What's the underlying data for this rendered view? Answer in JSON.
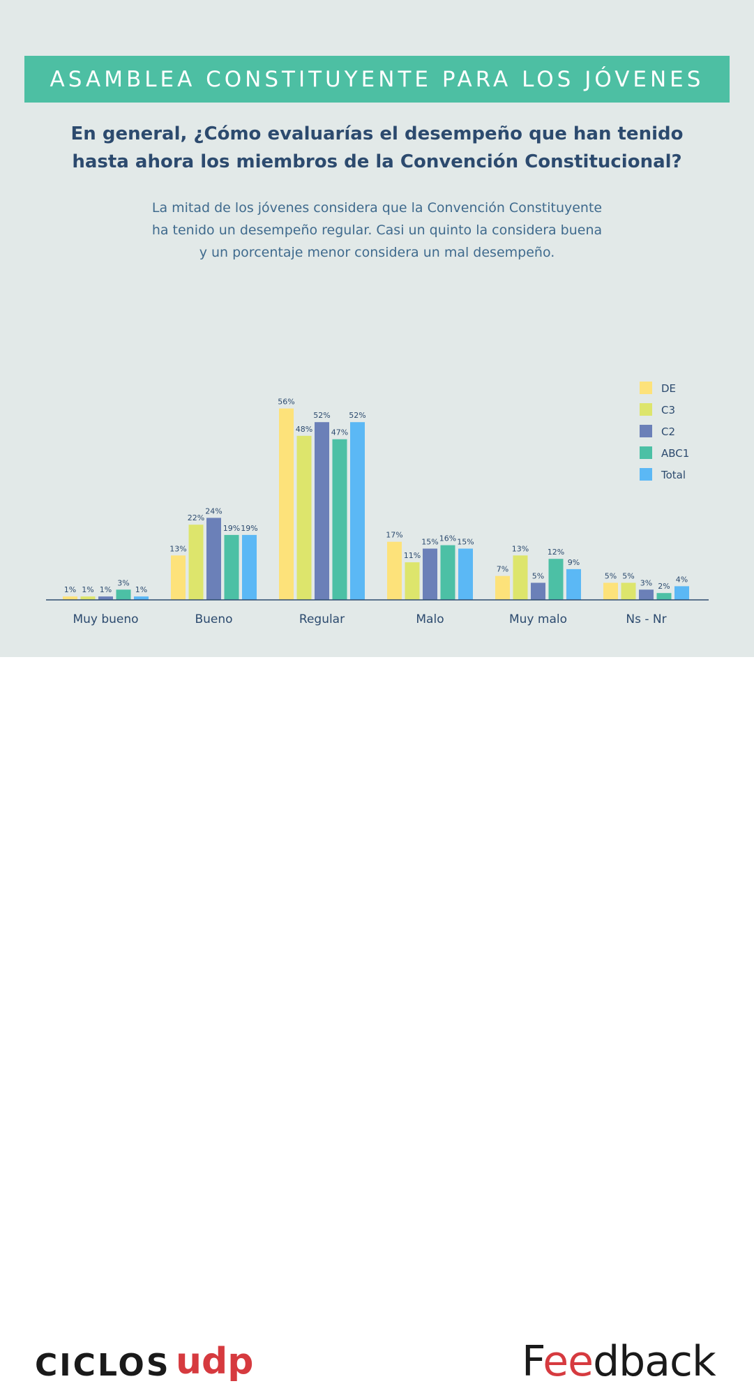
{
  "header": {
    "banner": "ASAMBLEA CONSTITUYENTE PARA LOS JÓVENES",
    "question_line1": "En general, ¿Cómo evaluarías el desempeño que han tenido",
    "question_line2": "hasta ahora los miembros de la Convención Constitucional?",
    "summary_line1": "La mitad de los jóvenes considera que la Convención Constituyente",
    "summary_line2": "ha tenido un desempeño regular. Casi un quinto la considera buena",
    "summary_line3": "y un porcentaje menor considera un mal desempeño."
  },
  "colors": {
    "background": "#e2e9e8",
    "banner": "#4dbfa3",
    "heading": "#2c4a6e",
    "body_text": "#3f6a8d",
    "brand_red": "#d63a3f"
  },
  "chart_data": {
    "type": "bar",
    "title": "",
    "xlabel": "",
    "ylabel": "",
    "ylim": [
      0,
      60
    ],
    "grid": false,
    "legend_position": "top-right",
    "categories": [
      "Muy bueno",
      "Bueno",
      "Regular",
      "Malo",
      "Muy malo",
      "Ns - Nr"
    ],
    "series": [
      {
        "name": "DE",
        "color": "#fde27a",
        "values": [
          1,
          13,
          56,
          17,
          7,
          5
        ]
      },
      {
        "name": "C3",
        "color": "#dde56c",
        "values": [
          1,
          22,
          48,
          11,
          13,
          5
        ]
      },
      {
        "name": "C2",
        "color": "#6b80b8",
        "values": [
          1,
          24,
          52,
          15,
          5,
          3
        ]
      },
      {
        "name": "ABC1",
        "color": "#4cc0a5",
        "values": [
          3,
          19,
          47,
          16,
          12,
          2
        ]
      },
      {
        "name": "Total",
        "color": "#5bb8f5",
        "values": [
          1,
          19,
          52,
          15,
          9,
          4
        ]
      }
    ],
    "value_suffix": "%"
  },
  "footer": {
    "logo_ciclos": "CICLOS",
    "logo_udp": "udp",
    "logo_feedback_start": "F",
    "logo_feedback_ee": "ee",
    "logo_feedback_end": "dback"
  }
}
